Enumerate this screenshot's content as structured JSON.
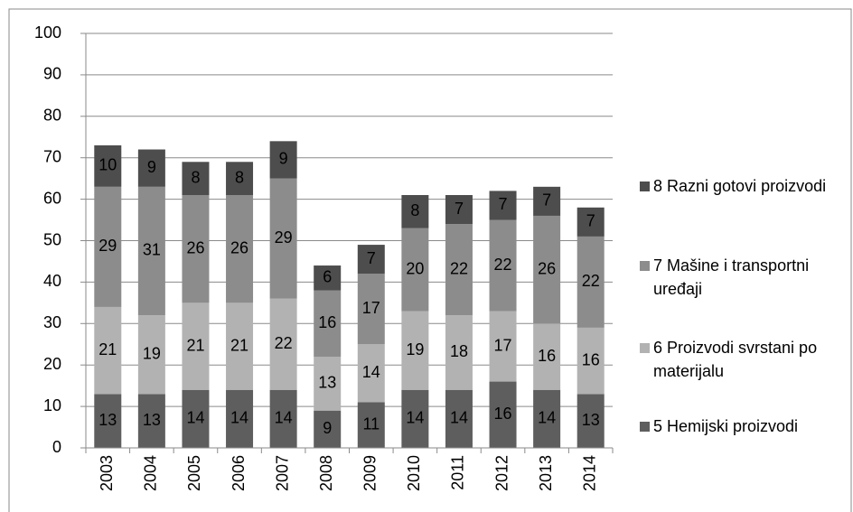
{
  "chart_data": {
    "type": "stacked_bar",
    "categories": [
      "2003",
      "2004",
      "2005",
      "2006",
      "2007",
      "2008",
      "2009",
      "2010",
      "2011",
      "2012",
      "2013",
      "2014"
    ],
    "series": [
      {
        "name": "5 Hemijski proizvodi",
        "color": "#5e5e5e",
        "values": [
          13,
          13,
          14,
          14,
          14,
          9,
          11,
          14,
          14,
          16,
          14,
          13
        ]
      },
      {
        "name": "6 Proizvodi svrstani po materijalu",
        "color": "#b2b2b2",
        "values": [
          21,
          19,
          21,
          21,
          22,
          13,
          14,
          19,
          18,
          17,
          16,
          16
        ]
      },
      {
        "name": "7 Mašine i transportni uređaji",
        "color": "#8c8c8c",
        "values": [
          29,
          31,
          26,
          26,
          29,
          16,
          17,
          20,
          22,
          22,
          26,
          22
        ]
      },
      {
        "name": "8 Razni gotovi proizvodi",
        "color": "#4d4d4d",
        "values": [
          10,
          9,
          8,
          8,
          9,
          6,
          7,
          8,
          7,
          7,
          7,
          7
        ]
      }
    ],
    "ylim": [
      0,
      100
    ],
    "yticks": [
      0,
      10,
      20,
      30,
      40,
      50,
      60,
      70,
      80,
      90,
      100
    ],
    "grid": true,
    "legend": "right"
  }
}
